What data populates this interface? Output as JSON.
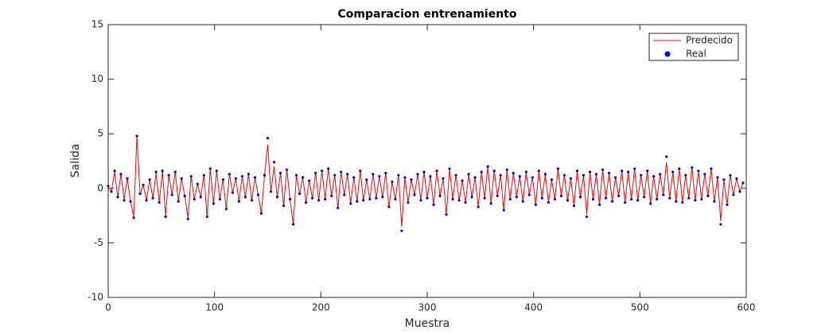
{
  "chart_data": {
    "type": "line",
    "title": "Comparacion entrenamiento",
    "x_label": "Muestra",
    "y_label": "Salida",
    "x": [
      0,
      3,
      6,
      9,
      12,
      15,
      18,
      21,
      24,
      27,
      30,
      33,
      36,
      39,
      42,
      45,
      48,
      51,
      54,
      57,
      60,
      63,
      66,
      69,
      72,
      75,
      78,
      81,
      84,
      87,
      90,
      93,
      96,
      99,
      102,
      105,
      108,
      111,
      114,
      117,
      120,
      123,
      126,
      129,
      132,
      135,
      138,
      141,
      144,
      147,
      150,
      153,
      156,
      159,
      162,
      165,
      168,
      171,
      174,
      177,
      180,
      183,
      186,
      189,
      192,
      195,
      198,
      201,
      204,
      207,
      210,
      213,
      216,
      219,
      222,
      225,
      228,
      231,
      234,
      237,
      240,
      243,
      246,
      249,
      252,
      255,
      258,
      261,
      264,
      267,
      270,
      273,
      276,
      279,
      282,
      285,
      288,
      291,
      294,
      297,
      300,
      303,
      306,
      309,
      312,
      315,
      318,
      321,
      324,
      327,
      330,
      333,
      336,
      339,
      342,
      345,
      348,
      351,
      354,
      357,
      360,
      363,
      366,
      369,
      372,
      375,
      378,
      381,
      384,
      387,
      390,
      393,
      396,
      399,
      402,
      405,
      408,
      411,
      414,
      417,
      420,
      423,
      426,
      429,
      432,
      435,
      438,
      441,
      444,
      447,
      450,
      453,
      456,
      459,
      462,
      465,
      468,
      471,
      474,
      477,
      480,
      483,
      486,
      489,
      492,
      495,
      498,
      501,
      504,
      507,
      510,
      513,
      516,
      519,
      522,
      525,
      528,
      531,
      534,
      537,
      540,
      543,
      546,
      549,
      552,
      555,
      558,
      561,
      564,
      567,
      570,
      573,
      576,
      579,
      582,
      585,
      588,
      591,
      594,
      597
    ],
    "series": [
      {
        "name": "Predecido",
        "color": "#ff0000",
        "style": "line",
        "values": [
          0.1,
          -0.3,
          1.5,
          -0.8,
          1.3,
          -1.0,
          0.9,
          -1.2,
          -2.6,
          4.8,
          -0.5,
          0.3,
          -1.1,
          0.8,
          -0.9,
          1.4,
          -1.3,
          1.6,
          -2.5,
          1.2,
          -0.6,
          1.5,
          -1.2,
          0.9,
          -0.7,
          -2.7,
          1.1,
          -1.0,
          0.4,
          -0.8,
          1.2,
          -2.6,
          1.8,
          -1.4,
          1.6,
          -1.0,
          0.8,
          -1.9,
          1.3,
          -0.4,
          0.9,
          -1.2,
          1.1,
          -0.8,
          1.3,
          -1.1,
          1.0,
          -0.6,
          -2.3,
          1.2,
          4.0,
          -0.3,
          2.0,
          -0.8,
          1.4,
          -1.6,
          1.7,
          -1.0,
          -3.3,
          1.2,
          -0.5,
          1.0,
          -1.3,
          0.7,
          -0.9,
          1.4,
          -1.1,
          1.6,
          -1.0,
          1.8,
          -0.7,
          1.2,
          -1.8,
          1.5,
          -0.6,
          1.3,
          -1.4,
          1.0,
          -1.2,
          1.6,
          -1.1,
          0.8,
          -1.0,
          1.3,
          -0.9,
          1.1,
          -0.8,
          1.4,
          -1.7,
          0.6,
          -1.0,
          1.2,
          -3.5,
          1.0,
          -1.3,
          0.8,
          -0.6,
          1.3,
          -1.1,
          1.5,
          -0.9,
          1.1,
          -1.5,
          1.6,
          -0.7,
          0.9,
          -2.4,
          1.8,
          -1.0,
          1.2,
          -1.1,
          0.7,
          -1.3,
          1.3,
          -0.8,
          1.0,
          -1.7,
          1.5,
          -0.9,
          2.0,
          -1.4,
          1.6,
          -0.7,
          1.2,
          -2.0,
          1.7,
          -1.0,
          1.4,
          -0.8,
          1.1,
          -1.2,
          1.5,
          -0.6,
          1.0,
          -1.5,
          1.6,
          -0.9,
          1.3,
          -1.3,
          0.8,
          -1.0,
          1.8,
          -0.7,
          1.2,
          -1.1,
          0.9,
          -1.6,
          1.6,
          -0.8,
          1.2,
          -2.4,
          1.5,
          -1.0,
          1.3,
          -1.5,
          1.7,
          -0.9,
          1.4,
          -1.2,
          1.0,
          -0.7,
          1.6,
          -1.3,
          1.5,
          -1.0,
          1.8,
          -1.1,
          1.2,
          -0.8,
          1.6,
          -1.4,
          1.1,
          -1.0,
          1.3,
          -0.6,
          2.4,
          -0.9,
          1.5,
          -1.2,
          1.8,
          -1.3,
          1.2,
          -0.9,
          1.9,
          -1.1,
          1.6,
          -1.0,
          1.3,
          -0.7,
          1.8,
          -1.2,
          1.0,
          -3.0,
          0.8,
          -1.5,
          1.2,
          -0.6,
          0.9,
          -0.3,
          0.5
        ]
      },
      {
        "name": "Real",
        "color": "#0000ff",
        "style": "points",
        "values": [
          0.2,
          -0.3,
          1.6,
          -0.8,
          1.3,
          -1.1,
          0.9,
          -1.2,
          -2.7,
          4.8,
          -0.5,
          0.3,
          -1.1,
          0.8,
          -0.9,
          1.5,
          -1.3,
          1.6,
          -2.6,
          1.2,
          -0.6,
          1.5,
          -1.2,
          0.9,
          -0.7,
          -2.8,
          1.1,
          -1.0,
          0.4,
          -0.8,
          1.2,
          -2.6,
          1.8,
          -1.4,
          1.6,
          -1.0,
          0.8,
          -1.9,
          1.3,
          -0.4,
          0.9,
          -1.2,
          1.1,
          -0.8,
          1.3,
          -1.1,
          1.0,
          -0.6,
          -2.3,
          1.2,
          4.6,
          -0.3,
          2.4,
          -0.8,
          1.4,
          -1.6,
          1.7,
          -1.0,
          -3.3,
          1.2,
          -0.5,
          1.0,
          -1.3,
          0.7,
          -0.9,
          1.4,
          -1.1,
          1.6,
          -1.0,
          1.8,
          -0.7,
          1.2,
          -1.8,
          1.5,
          -0.6,
          1.3,
          -1.4,
          1.0,
          -1.2,
          1.6,
          -1.1,
          0.8,
          -1.0,
          1.3,
          -0.9,
          1.1,
          -0.8,
          1.4,
          -1.7,
          0.6,
          -1.0,
          1.2,
          -3.9,
          1.0,
          -1.3,
          0.8,
          -0.6,
          1.3,
          -1.1,
          1.5,
          -0.9,
          1.1,
          -1.5,
          1.6,
          -0.7,
          0.9,
          -2.4,
          1.8,
          -1.0,
          1.2,
          -1.1,
          0.7,
          -1.3,
          1.3,
          -0.8,
          1.0,
          -1.7,
          1.5,
          -0.9,
          2.0,
          -1.4,
          1.6,
          -0.7,
          1.2,
          -2.0,
          1.7,
          -1.0,
          1.4,
          -0.8,
          1.1,
          -1.2,
          1.5,
          -0.6,
          1.0,
          -1.5,
          1.6,
          -0.9,
          1.3,
          -1.3,
          0.8,
          -1.0,
          1.8,
          -0.7,
          1.2,
          -1.1,
          0.9,
          -1.6,
          1.6,
          -0.8,
          1.2,
          -2.6,
          1.5,
          -1.0,
          1.3,
          -1.5,
          1.7,
          -0.9,
          1.4,
          -1.2,
          1.0,
          -0.7,
          1.6,
          -1.3,
          1.5,
          -1.0,
          1.8,
          -1.1,
          1.2,
          -0.8,
          1.6,
          -1.4,
          1.1,
          -1.0,
          1.3,
          -0.6,
          2.9,
          -0.9,
          1.5,
          -1.2,
          1.8,
          -1.3,
          1.2,
          -0.9,
          1.9,
          -1.1,
          1.6,
          -1.0,
          1.3,
          -0.7,
          1.8,
          -1.2,
          1.0,
          -3.3,
          0.8,
          -1.5,
          1.2,
          -0.6,
          0.9,
          -0.3,
          0.5
        ]
      }
    ],
    "xlim": [
      0,
      600
    ],
    "xticks": [
      0,
      100,
      200,
      300,
      400,
      500,
      600
    ],
    "ylim": [
      -10,
      15
    ],
    "yticks": [
      -10,
      -5,
      0,
      5,
      10,
      15
    ],
    "grid": false,
    "legend": "top-right"
  }
}
